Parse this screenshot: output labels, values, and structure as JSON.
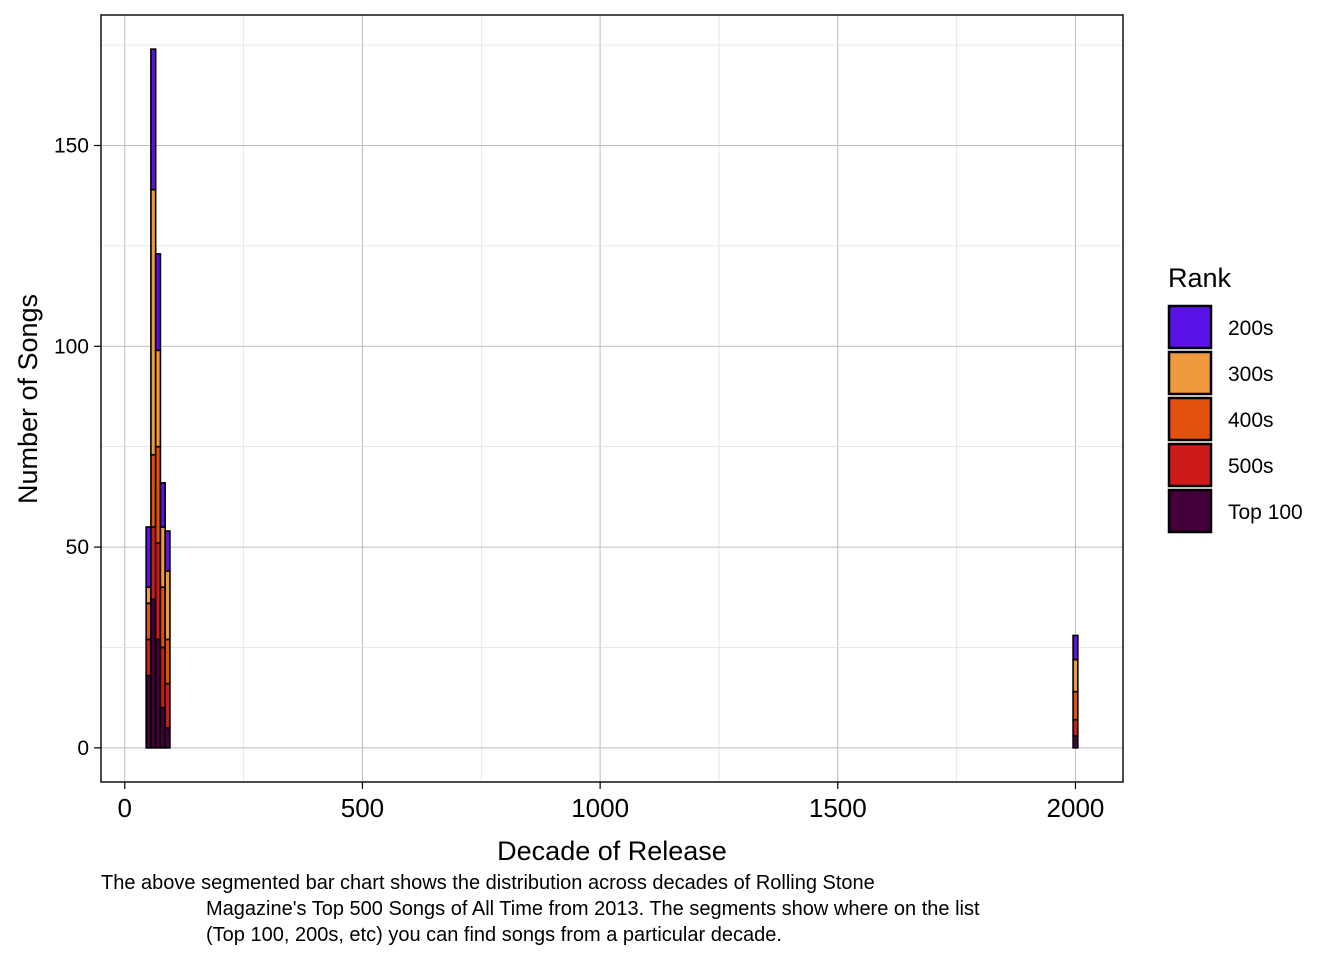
{
  "chart_data": {
    "type": "bar",
    "stacked": true,
    "xlabel": "Decade of Release",
    "ylabel": "Number of Songs",
    "xlim": [
      -50,
      2100
    ],
    "ylim": [
      -8.5,
      182.5
    ],
    "x_ticks": [
      0,
      500,
      1000,
      1500,
      2000
    ],
    "y_ticks": [
      0,
      50,
      100,
      150
    ],
    "grid": true,
    "legend": {
      "title": "Rank",
      "position": "right",
      "entries": [
        {
          "label": "200s",
          "color": "#5b12e8"
        },
        {
          "label": "300s",
          "color": "#ef9a3e"
        },
        {
          "label": "400s",
          "color": "#e2510d"
        },
        {
          "label": "500s",
          "color": "#cf1a1a"
        },
        {
          "label": "Top 100",
          "color": "#430038"
        }
      ]
    },
    "stack_order": [
      "Top 100",
      "500s",
      "400s",
      "300s",
      "200s"
    ],
    "bar_width": 10,
    "categories": [
      50,
      60,
      70,
      80,
      90,
      2000
    ],
    "series": [
      {
        "name": "Top 100",
        "values": [
          18,
          37,
          27,
          10,
          5,
          3
        ]
      },
      {
        "name": "500s",
        "values": [
          9,
          18,
          24,
          15,
          11,
          4
        ]
      },
      {
        "name": "400s",
        "values": [
          9,
          18,
          24,
          15,
          11,
          7
        ]
      },
      {
        "name": "300s",
        "values": [
          4,
          66,
          24,
          15,
          17,
          8
        ]
      },
      {
        "name": "200s",
        "values": [
          15,
          35,
          24,
          11,
          10,
          6
        ]
      }
    ]
  },
  "caption": {
    "line1": "The above segmented bar chart shows the distribution across decades of Rolling Stone",
    "line2": "Magazine's Top 500 Songs of All Time from 2013. The segments show where on the list",
    "line3": "(Top 100, 200s, etc) you can find songs from a particular decade."
  }
}
